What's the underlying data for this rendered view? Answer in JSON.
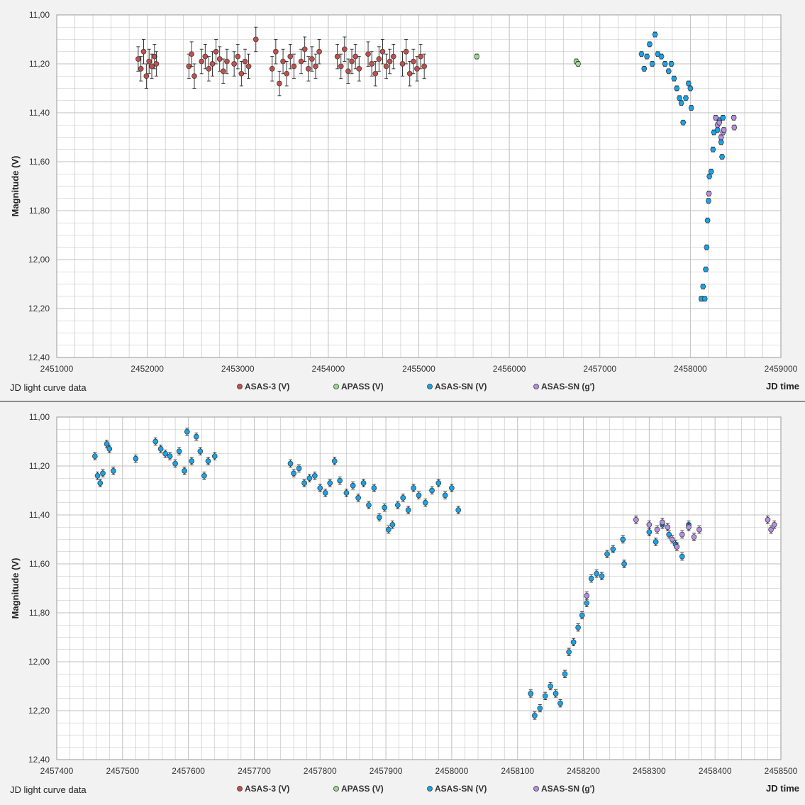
{
  "colors": {
    "asas3": "#c0504d",
    "apass": "#9bd88f",
    "asassn_v": "#1aa3e8",
    "asassn_g": "#b58ee0",
    "grid": "#bfbfbf",
    "plot_bg": "#ffffff",
    "panel_bg": "#f2f2f2"
  },
  "legend": [
    {
      "name": "ASAS-3 (V)",
      "color_key": "asas3"
    },
    {
      "name": "APASS (V)",
      "color_key": "apass"
    },
    {
      "name": "ASAS-SN (V)",
      "color_key": "asassn_v"
    },
    {
      "name": "ASAS-SN (g')",
      "color_key": "asassn_g"
    }
  ],
  "chart_data": [
    {
      "type": "scatter",
      "title": "JD light curve data",
      "xlabel": "JD time",
      "ylabel": "Magnitude (V)",
      "xlim": [
        2451000,
        2459000
      ],
      "ylim": [
        11.0,
        12.4
      ],
      "y_inverted": true,
      "grid": true,
      "legend_position": "bottom",
      "x_ticks": [
        "2451000",
        "2452000",
        "2453000",
        "2454000",
        "2455000",
        "2456000",
        "2457000",
        "2458000",
        "2459000"
      ],
      "y_ticks": [
        "11,00",
        "11,20",
        "11,40",
        "11,60",
        "11,80",
        "12,00",
        "12,20",
        "12,40"
      ],
      "series": [
        {
          "name": "ASAS-3 (V)",
          "color_key": "asas3",
          "err": 0.05,
          "x": [
            2451900,
            2451930,
            2451960,
            2451990,
            2452020,
            2452050,
            2452080,
            2452100,
            2452460,
            2452490,
            2452520,
            2452600,
            2452640,
            2452680,
            2452720,
            2452760,
            2452800,
            2452840,
            2452880,
            2452960,
            2453000,
            2453040,
            2453080,
            2453120,
            2453200,
            2453380,
            2453420,
            2453460,
            2453500,
            2453540,
            2453580,
            2453620,
            2453700,
            2453740,
            2453780,
            2453820,
            2453860,
            2453900,
            2454100,
            2454140,
            2454180,
            2454220,
            2454260,
            2454300,
            2454340,
            2454440,
            2454480,
            2454520,
            2454560,
            2454600,
            2454640,
            2454680,
            2454720,
            2454820,
            2454860,
            2454900,
            2454940,
            2454980,
            2455020,
            2455060
          ],
          "y": [
            11.18,
            11.22,
            11.15,
            11.25,
            11.19,
            11.21,
            11.17,
            11.2,
            11.21,
            11.16,
            11.25,
            11.19,
            11.17,
            11.22,
            11.2,
            11.15,
            11.18,
            11.23,
            11.19,
            11.2,
            11.17,
            11.24,
            11.19,
            11.21,
            11.1,
            11.22,
            11.15,
            11.28,
            11.19,
            11.24,
            11.17,
            11.21,
            11.19,
            11.14,
            11.22,
            11.18,
            11.21,
            11.15,
            11.17,
            11.21,
            11.14,
            11.23,
            11.19,
            11.17,
            11.22,
            11.16,
            11.2,
            11.24,
            11.18,
            11.15,
            11.21,
            11.19,
            11.17,
            11.2,
            11.15,
            11.24,
            11.19,
            11.22,
            11.17,
            11.21
          ]
        },
        {
          "name": "APASS (V)",
          "color_key": "apass",
          "err": 0.01,
          "x": [
            2455640,
            2456740,
            2456760
          ],
          "y": [
            11.17,
            11.19,
            11.2
          ]
        },
        {
          "name": "ASAS-SN (V)",
          "color_key": "asassn_v",
          "err": 0.01,
          "x": [
            2457460,
            2457490,
            2457520,
            2457550,
            2457580,
            2457610,
            2457640,
            2457680,
            2457720,
            2457760,
            2457790,
            2457820,
            2457850,
            2457880,
            2457900,
            2457920,
            2457950,
            2457980,
            2458000,
            2458010,
            2458120,
            2458140,
            2458160,
            2458170,
            2458180,
            2458190,
            2458200,
            2458210,
            2458230,
            2458250,
            2458260,
            2458300,
            2458320,
            2458340,
            2458350,
            2458360
          ],
          "y": [
            11.16,
            11.22,
            11.17,
            11.12,
            11.2,
            11.08,
            11.16,
            11.17,
            11.2,
            11.23,
            11.2,
            11.26,
            11.3,
            11.34,
            11.36,
            11.44,
            11.34,
            11.28,
            11.3,
            11.38,
            12.16,
            12.11,
            12.16,
            12.04,
            11.95,
            11.84,
            11.76,
            11.66,
            11.64,
            11.55,
            11.48,
            11.47,
            11.43,
            11.52,
            11.58,
            11.42
          ]
        },
        {
          "name": "ASAS-SN (g')",
          "color_key": "asassn_g",
          "err": 0.01,
          "x": [
            2458205,
            2458280,
            2458300,
            2458320,
            2458340,
            2458360,
            2458370,
            2458480,
            2458485
          ],
          "y": [
            11.73,
            11.42,
            11.45,
            11.44,
            11.5,
            11.48,
            11.47,
            11.42,
            11.46
          ]
        }
      ]
    },
    {
      "type": "scatter",
      "title": "JD light curve data",
      "xlabel": "JD time",
      "ylabel": "Magnitude (V)",
      "xlim": [
        2457400,
        2458500
      ],
      "ylim": [
        11.0,
        12.4
      ],
      "y_inverted": true,
      "grid": true,
      "legend_position": "bottom",
      "x_ticks": [
        "2457400",
        "2457500",
        "2457600",
        "2457700",
        "2457800",
        "2457900",
        "2458000",
        "2458100",
        "2458200",
        "2458300",
        "2458400",
        "2458500"
      ],
      "y_ticks": [
        "11,00",
        "11,20",
        "11,40",
        "11,60",
        "11,80",
        "12,00",
        "12,20",
        "12,40"
      ],
      "series": [
        {
          "name": "ASAS-SN (V)",
          "color_key": "asassn_v",
          "err": 0.015,
          "x": [
            2457458,
            2457462,
            2457466,
            2457470,
            2457476,
            2457480,
            2457486,
            2457520,
            2457550,
            2457558,
            2457565,
            2457572,
            2457580,
            2457586,
            2457594,
            2457598,
            2457605,
            2457612,
            2457618,
            2457624,
            2457630,
            2457640,
            2457755,
            2457760,
            2457768,
            2457776,
            2457784,
            2457792,
            2457800,
            2457808,
            2457815,
            2457822,
            2457830,
            2457840,
            2457850,
            2457858,
            2457866,
            2457874,
            2457882,
            2457890,
            2457898,
            2457904,
            2457910,
            2457918,
            2457926,
            2457934,
            2457942,
            2457950,
            2457960,
            2457970,
            2457980,
            2457990,
            2458000,
            2458010,
            2458120,
            2458126,
            2458134,
            2458142,
            2458150,
            2458158,
            2458165,
            2458172,
            2458178,
            2458185,
            2458192,
            2458198,
            2458205,
            2458212,
            2458220,
            2458228,
            2458236,
            2458245,
            2458260,
            2458262,
            2458300,
            2458310,
            2458320,
            2458330,
            2458340,
            2458350,
            2458360
          ],
          "y": [
            11.16,
            11.24,
            11.27,
            11.23,
            11.11,
            11.13,
            11.22,
            11.17,
            11.1,
            11.13,
            11.15,
            11.16,
            11.19,
            11.14,
            11.22,
            11.06,
            11.18,
            11.08,
            11.14,
            11.24,
            11.18,
            11.16,
            11.19,
            11.23,
            11.21,
            11.27,
            11.25,
            11.24,
            11.29,
            11.31,
            11.27,
            11.18,
            11.26,
            11.31,
            11.28,
            11.33,
            11.27,
            11.36,
            11.29,
            11.41,
            11.37,
            11.46,
            11.44,
            11.36,
            11.33,
            11.38,
            11.29,
            11.32,
            11.35,
            11.3,
            11.27,
            11.32,
            11.29,
            11.38,
            12.13,
            12.22,
            12.19,
            12.14,
            12.1,
            12.13,
            12.17,
            12.05,
            11.96,
            11.92,
            11.86,
            11.81,
            11.76,
            11.66,
            11.64,
            11.65,
            11.56,
            11.54,
            11.5,
            11.6,
            11.47,
            11.51,
            11.44,
            11.48,
            11.52,
            11.57,
            11.44
          ]
        },
        {
          "name": "ASAS-SN (g')",
          "color_key": "asassn_g",
          "err": 0.015,
          "x": [
            2458205,
            2458280,
            2458300,
            2458312,
            2458320,
            2458328,
            2458335,
            2458342,
            2458350,
            2458360,
            2458368,
            2458376,
            2458480,
            2458485,
            2458490
          ],
          "y": [
            11.73,
            11.42,
            11.44,
            11.46,
            11.43,
            11.45,
            11.5,
            11.53,
            11.48,
            11.45,
            11.49,
            11.46,
            11.42,
            11.46,
            11.44
          ]
        }
      ]
    }
  ]
}
